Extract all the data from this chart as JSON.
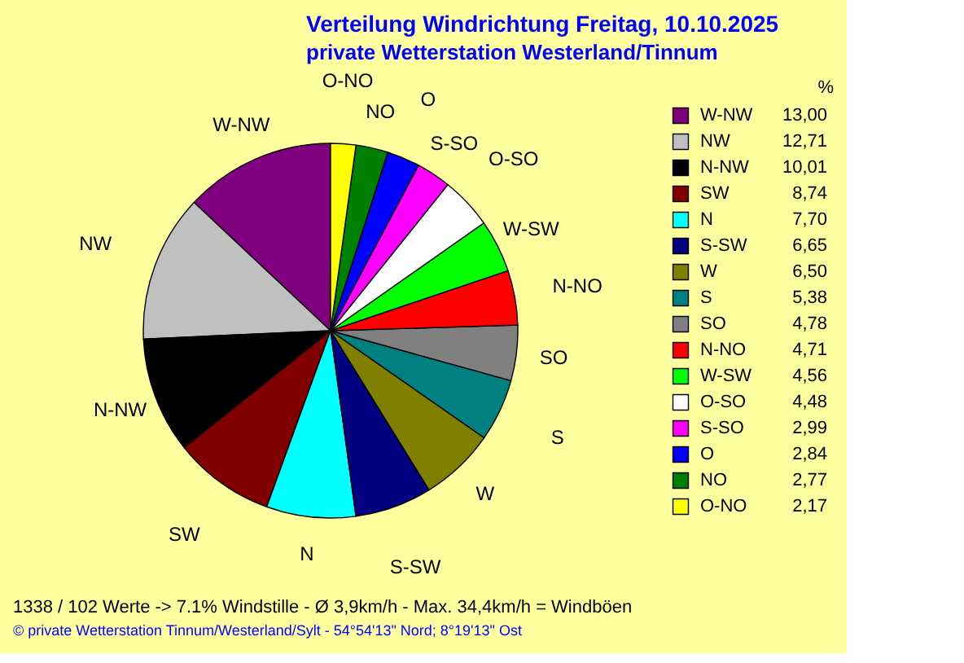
{
  "chart_data": {
    "type": "pie",
    "title": "Verteilung Windrichtung   Freitag, 10.10.2025",
    "subtitle": "private Wetterstation Westerland/Tinnum",
    "legend_title": "%",
    "categories": [
      "W-NW",
      "NW",
      "N-NW",
      "SW",
      "N",
      "S-SW",
      "W",
      "S",
      "SO",
      "N-NO",
      "W-SW",
      "O-SO",
      "S-SO",
      "O",
      "NO",
      "O-NO"
    ],
    "values": [
      13.0,
      12.71,
      10.01,
      8.74,
      7.7,
      6.65,
      6.5,
      5.38,
      4.78,
      4.71,
      4.56,
      4.48,
      2.99,
      2.84,
      2.77,
      2.17
    ],
    "value_labels": [
      "13,00",
      "12,71",
      "10,01",
      "8,74",
      "7,70",
      "6,65",
      "6,50",
      "5,38",
      "4,78",
      "4,71",
      "4,56",
      "4,48",
      "2,99",
      "2,84",
      "2,77",
      "2,17"
    ],
    "colors": [
      "#800080",
      "#c0c0c0",
      "#000000",
      "#800000",
      "#00ffff",
      "#000080",
      "#808000",
      "#008080",
      "#808080",
      "#ff0000",
      "#00ff00",
      "#ffffff",
      "#ff00ff",
      "#0000ff",
      "#008000",
      "#ffff00"
    ],
    "legend": "right",
    "annotations": [
      "1338 / 102 Werte  -> 7.1% Windstille   -   Ø 3,9km/h  -  Max. 34,4km/h = Windböen",
      "© private Wetterstation Tinnum/Westerland/Sylt   -   54°54'13\" Nord; 8°19'13\" Ost"
    ]
  }
}
